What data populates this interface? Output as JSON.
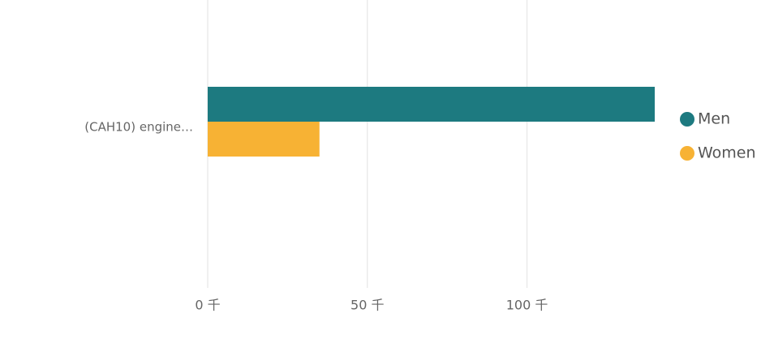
{
  "chart_data": {
    "type": "hbar",
    "categories": [
      "(CAH10) engine…"
    ],
    "series": [
      {
        "name": "Men",
        "color": "#1d7a80",
        "values": [
          140000
        ]
      },
      {
        "name": "Women",
        "color": "#f7b234",
        "values": [
          35000
        ]
      }
    ],
    "xlim": [
      0,
      140000
    ],
    "xticks": [
      {
        "value": 0,
        "label": "0 千"
      },
      {
        "value": 50000,
        "label": "50 千"
      },
      {
        "value": 100000,
        "label": "100 千"
      }
    ],
    "grid": true,
    "legend": "right"
  }
}
